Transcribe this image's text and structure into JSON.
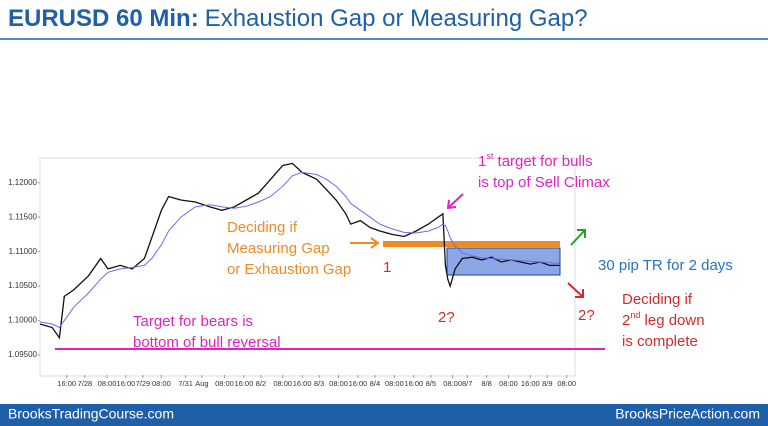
{
  "chart_data": {
    "type": "line",
    "title_bold": "EURUSD 60 Min:",
    "title": "Exhaustion Gap or Measuring Gap?",
    "footer_left": "BrooksTradingCourse.com",
    "footer_right": "BrooksPriceAction.com",
    "ylim": [
      1.0921,
      1.1233
    ],
    "yticks": [
      {
        "value": 1.095,
        "label": "1.09500"
      },
      {
        "value": 1.1,
        "label": "1.10000"
      },
      {
        "value": 1.105,
        "label": "1.10500"
      },
      {
        "value": 1.11,
        "label": "1.11000"
      },
      {
        "value": 1.115,
        "label": "1.11500"
      },
      {
        "value": 1.12,
        "label": "1.12000"
      }
    ],
    "xlim": [
      0,
      220
    ],
    "xticks": [
      {
        "value": 11,
        "label": "16:00"
      },
      {
        "value": 18.5,
        "label": "7/28"
      },
      {
        "value": 27.6,
        "label": "08:00"
      },
      {
        "value": 35.4,
        "label": "16:00"
      },
      {
        "value": 42.4,
        "label": "7/29"
      },
      {
        "value": 50,
        "label": "08:00"
      },
      {
        "value": 60,
        "label": "7/31"
      },
      {
        "value": 66.7,
        "label": "Aug"
      },
      {
        "value": 76,
        "label": "08:00"
      },
      {
        "value": 84,
        "label": "16:00"
      },
      {
        "value": 91,
        "label": "8/2"
      },
      {
        "value": 100,
        "label": "08:00"
      },
      {
        "value": 108,
        "label": "16:00"
      },
      {
        "value": 115,
        "label": "8/3"
      },
      {
        "value": 123,
        "label": "08:00"
      },
      {
        "value": 131,
        "label": "16:00"
      },
      {
        "value": 138,
        "label": "8/4"
      },
      {
        "value": 146,
        "label": "08:00"
      },
      {
        "value": 154,
        "label": "16:00"
      },
      {
        "value": 161,
        "label": "8/5"
      },
      {
        "value": 170,
        "label": "08:00"
      },
      {
        "value": 176,
        "label": "8/7"
      },
      {
        "value": 184,
        "label": "8/8"
      },
      {
        "value": 193,
        "label": "08:00"
      },
      {
        "value": 202,
        "label": "16:00"
      },
      {
        "value": 209,
        "label": "8/9"
      },
      {
        "value": 217,
        "label": "08:00"
      }
    ],
    "x": [
      0,
      5,
      8,
      10,
      14,
      20,
      25,
      28,
      33,
      38,
      43,
      46,
      50,
      53,
      58,
      64,
      70,
      75,
      80,
      85,
      90,
      95,
      100,
      104,
      108,
      114,
      118,
      122,
      126,
      128,
      132,
      136,
      140,
      145,
      150,
      155,
      160,
      164,
      166,
      167,
      168,
      169,
      171,
      174,
      178,
      182,
      186,
      190,
      194,
      198,
      202,
      206,
      210,
      214
    ],
    "series": [
      {
        "color": "#111111",
        "values": [
          1.0995,
          1.099,
          1.0975,
          1.1035,
          1.1045,
          1.1065,
          1.109,
          1.1075,
          1.108,
          1.1075,
          1.109,
          1.112,
          1.116,
          1.118,
          1.1175,
          1.1172,
          1.1165,
          1.116,
          1.1165,
          1.1175,
          1.1185,
          1.1205,
          1.1225,
          1.1228,
          1.1215,
          1.1205,
          1.119,
          1.1175,
          1.1155,
          1.114,
          1.1145,
          1.1135,
          1.113,
          1.1125,
          1.1122,
          1.113,
          1.114,
          1.115,
          1.1155,
          1.108,
          1.106,
          1.105,
          1.1075,
          1.109,
          1.1092,
          1.1088,
          1.1092,
          1.1085,
          1.1088,
          1.1085,
          1.1082,
          1.1085,
          1.108,
          1.108
        ]
      },
      {
        "color": "#6b6bef",
        "values": [
          1.0998,
          1.0995,
          1.099,
          1.1,
          1.102,
          1.104,
          1.106,
          1.107,
          1.1075,
          1.1077,
          1.108,
          1.109,
          1.111,
          1.113,
          1.115,
          1.1165,
          1.1168,
          1.1165,
          1.1163,
          1.1166,
          1.1172,
          1.118,
          1.1195,
          1.121,
          1.1215,
          1.1212,
          1.1205,
          1.1195,
          1.118,
          1.117,
          1.116,
          1.115,
          1.114,
          1.1133,
          1.1128,
          1.1127,
          1.113,
          1.1135,
          1.114,
          1.1138,
          1.113,
          1.112,
          1.1108,
          1.1098,
          1.1094,
          1.1091,
          1.109,
          1.1089,
          1.1088,
          1.1087,
          1.1086,
          1.1085,
          1.1084,
          1.1083
        ]
      }
    ],
    "annotations": [
      {
        "color": "#f08a24",
        "lines": [
          "Deciding if",
          "Measuring Gap",
          "or Exhaustion Gap"
        ]
      },
      {
        "color": "#d42a2a",
        "lines": [
          "1"
        ]
      },
      {
        "color": "#d42a2a",
        "lines": [
          "2?"
        ]
      },
      {
        "color": "#d42a2a",
        "lines": [
          "2?"
        ]
      },
      {
        "color": "#e024c4",
        "lines": [
          {
            "text": "1",
            "sup": "st",
            "rest": " target for bulls"
          },
          "is top of Sell Climax"
        ]
      },
      {
        "color": "#2673c2",
        "lines": [
          "30 pip TR for 2 days"
        ]
      },
      {
        "color": "#d42a2a",
        "lines": [
          "Deciding if",
          {
            "text": "2",
            "sup": "nd",
            "rest": " leg down"
          },
          "is complete"
        ]
      },
      {
        "color": "#e024c4",
        "lines": [
          "Target for bears is",
          "bottom of bull reversal"
        ]
      }
    ]
  }
}
